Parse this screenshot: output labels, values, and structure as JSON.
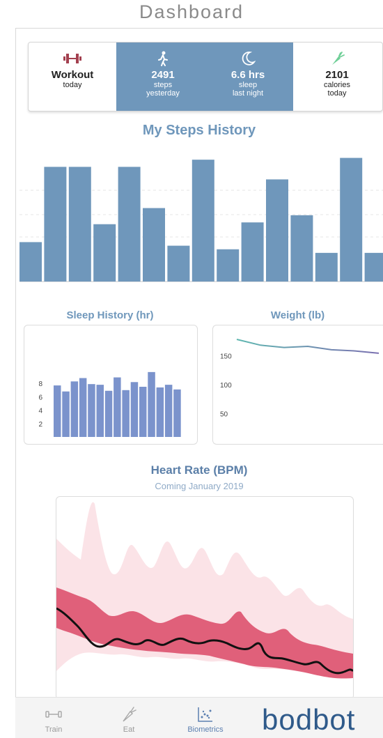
{
  "header": {
    "title": "Dashboard"
  },
  "stats": [
    {
      "icon": "dumbbell-icon",
      "value": "Workout",
      "label1": "today",
      "label2": ""
    },
    {
      "icon": "walking-person-icon",
      "value": "2491",
      "label1": "steps",
      "label2": "yesterday"
    },
    {
      "icon": "moon-icon",
      "value": "6.6 hrs",
      "label1": "sleep",
      "label2": "last night"
    },
    {
      "icon": "carrot-icon",
      "value": "2101",
      "label1": "calories",
      "label2": "today"
    }
  ],
  "steps": {
    "title": "My Steps History",
    "chart_data": {
      "type": "bar",
      "values": [
        22,
        64,
        64,
        32,
        64,
        41,
        20,
        68,
        18,
        33,
        57,
        37,
        16,
        69,
        16
      ],
      "ylim": [
        0,
        70
      ]
    }
  },
  "sleep": {
    "title": "Sleep History (hr)",
    "chart_data": {
      "type": "bar",
      "values": [
        7.7,
        6.8,
        8.3,
        8.8,
        7.9,
        7.8,
        6.9,
        8.9,
        7.0,
        8.2,
        7.5,
        9.7,
        7.4,
        7.8,
        7.1
      ],
      "yticks": [
        "8",
        "6",
        "4",
        "2"
      ],
      "ylim": [
        0,
        10
      ]
    }
  },
  "weight": {
    "title": "Weight (lb)",
    "chart_data": {
      "type": "line",
      "values": [
        178,
        168,
        164,
        166,
        160,
        158,
        154
      ],
      "yticks": [
        "150",
        "100",
        "50"
      ],
      "ylim": [
        0,
        190
      ]
    }
  },
  "heart": {
    "title": "Heart Rate (BPM)",
    "subtitle": "Coming January 2019"
  },
  "tabbar": {
    "tabs": [
      {
        "icon": "dumbbell-icon",
        "label": "Train"
      },
      {
        "icon": "carrot-icon",
        "label": "Eat"
      },
      {
        "icon": "scatter-chart-icon",
        "label": "Biometrics"
      }
    ],
    "logo": "bodbot"
  },
  "colors": {
    "accent": "#6f97bb",
    "sleep_bar": "#7b93cc",
    "heart": "#e0607a"
  }
}
